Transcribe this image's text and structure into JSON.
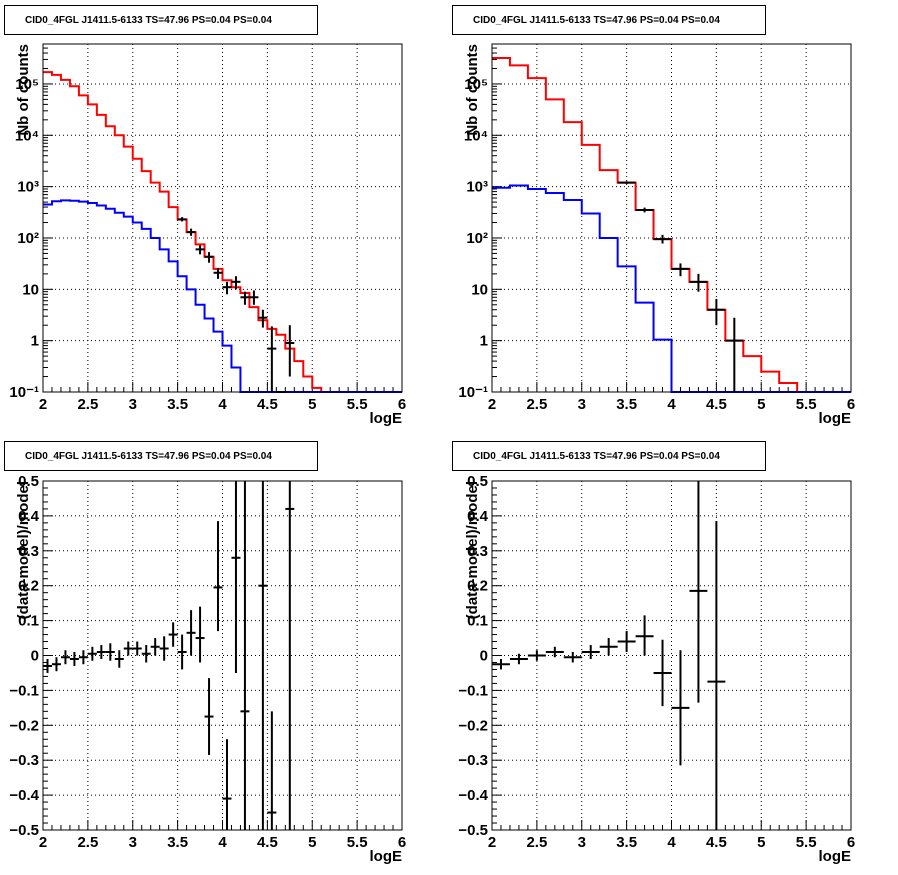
{
  "chart_data": [
    {
      "type": "histogram",
      "title": "CID0_4FGL J1411.5-6133 TS=47.96 PS=0.04 PS=0.04",
      "xlabel": "logE",
      "ylabel": "Nb of counts",
      "xlim": [
        2,
        6
      ],
      "ylim": [
        0.1,
        600000
      ],
      "yscale": "log",
      "grid": true,
      "xticks": [
        2,
        2.5,
        3,
        3.5,
        4,
        4.5,
        5,
        5.5,
        6
      ],
      "xticklabels": [
        "2",
        "2.5",
        "3",
        "3.5",
        "4",
        "4.5",
        "5",
        "5.5",
        "6"
      ],
      "yticks": [
        0.1,
        1,
        10,
        100,
        1000,
        10000,
        100000
      ],
      "bin_width": 0.1,
      "series": [
        {
          "kind": "step",
          "color": "#ff0000",
          "x": [
            2.05,
            2.15,
            2.25,
            2.35,
            2.45,
            2.55,
            2.65,
            2.75,
            2.85,
            2.95,
            3.05,
            3.15,
            3.25,
            3.35,
            3.45,
            3.55,
            3.65,
            3.75,
            3.85,
            3.95,
            4.05,
            4.15,
            4.25,
            4.35,
            4.45,
            4.55,
            4.65,
            4.75,
            4.85,
            4.95,
            5.05,
            5.15,
            5.25,
            5.35,
            5.45,
            5.55,
            5.65,
            5.75,
            5.85,
            5.95
          ],
          "values": [
            170000,
            150000,
            120000,
            90000,
            60000,
            40000,
            25000,
            15000,
            10000,
            6000,
            3500,
            2000,
            1200,
            800,
            400,
            230,
            130,
            75,
            43,
            25,
            15,
            11,
            8.5,
            4.5,
            2.5,
            1.7,
            1.3,
            0.7,
            0.4,
            0.2,
            0.12,
            0.1,
            0.1,
            0.1,
            0.1,
            0.1,
            0.1,
            0.1,
            0.1,
            0.1
          ]
        },
        {
          "kind": "step",
          "color": "#0000ff",
          "x": [
            2.05,
            2.15,
            2.25,
            2.35,
            2.45,
            2.55,
            2.65,
            2.75,
            2.85,
            2.95,
            3.05,
            3.15,
            3.25,
            3.35,
            3.45,
            3.55,
            3.65,
            3.75,
            3.85,
            3.95,
            4.05,
            4.15,
            4.25,
            4.35,
            4.45,
            4.55,
            4.65,
            4.75,
            4.85,
            4.95,
            5.05,
            5.15,
            5.25,
            5.35,
            5.45,
            5.55,
            5.65,
            5.75,
            5.85,
            5.95
          ],
          "values": [
            450,
            520,
            540,
            530,
            510,
            480,
            430,
            370,
            310,
            260,
            200,
            150,
            100,
            60,
            35,
            18,
            10,
            5,
            2.7,
            1.5,
            0.8,
            0.3,
            0.1,
            0.1,
            0.1,
            0.1,
            0.1,
            0.1,
            0.1,
            0.1,
            0.1,
            0.1,
            0.1,
            0.1,
            0.1,
            0.1,
            0.1,
            0.1,
            0.1,
            0.1
          ]
        },
        {
          "kind": "errorbars",
          "color": "#000000",
          "x": [
            3.55,
            3.65,
            3.75,
            3.85,
            3.95,
            4.05,
            4.15,
            4.25,
            4.35,
            4.45,
            4.55,
            4.65,
            4.75
          ],
          "values": [
            230,
            130,
            60,
            43,
            21,
            11,
            14,
            7,
            7,
            2.8,
            0.7,
            0.1,
            0.9
          ],
          "err_low": [
            210,
            110,
            48,
            33,
            16,
            8,
            10,
            5,
            5,
            1.8,
            0.1,
            0.1,
            0.2
          ],
          "err_high": [
            255,
            152,
            72,
            53,
            26,
            14,
            18,
            9,
            9.5,
            4,
            1.9,
            0.1,
            2
          ]
        }
      ]
    },
    {
      "type": "histogram",
      "title": "CID0_4FGL J1411.5-6133 TS=47.96 PS=0.04 PS=0.04",
      "xlabel": "logE",
      "ylabel": "Nb of counts",
      "xlim": [
        2,
        6
      ],
      "ylim": [
        0.1,
        600000
      ],
      "yscale": "log",
      "grid": true,
      "xticks": [
        2,
        2.5,
        3,
        3.5,
        4,
        4.5,
        5,
        5.5,
        6
      ],
      "xticklabels": [
        "2",
        "2.5",
        "3",
        "3.5",
        "4",
        "4.5",
        "5",
        "5.5",
        "6"
      ],
      "yticks": [
        0.1,
        1,
        10,
        100,
        1000,
        10000,
        100000
      ],
      "bin_width": 0.2,
      "series": [
        {
          "kind": "step",
          "color": "#ff0000",
          "x": [
            2.1,
            2.3,
            2.5,
            2.7,
            2.9,
            3.1,
            3.3,
            3.5,
            3.7,
            3.9,
            4.1,
            4.3,
            4.5,
            4.7,
            4.9,
            5.1,
            5.3,
            5.5,
            5.7,
            5.9
          ],
          "values": [
            320000,
            230000,
            130000,
            50000,
            18000,
            6500,
            2100,
            1200,
            350,
            95,
            25,
            14,
            4,
            1,
            0.5,
            0.25,
            0.15,
            0.1,
            0.1,
            0.1
          ]
        },
        {
          "kind": "step",
          "color": "#0000ff",
          "x": [
            2.1,
            2.3,
            2.5,
            2.7,
            2.9,
            3.1,
            3.3,
            3.5,
            3.7,
            3.9,
            4.1,
            4.3,
            4.5,
            4.7,
            4.9,
            5.1,
            5.3,
            5.5,
            5.7,
            5.9
          ],
          "values": [
            950,
            1050,
            900,
            750,
            550,
            300,
            100,
            28,
            5.5,
            1.05,
            0.1,
            0.1,
            0.1,
            0.1,
            0.1,
            0.1,
            0.1,
            0.1,
            0.1,
            0.1
          ]
        },
        {
          "kind": "errorbars",
          "color": "#000000",
          "x": [
            3.5,
            3.7,
            3.9,
            4.1,
            4.3,
            4.5,
            4.7
          ],
          "values": [
            1200,
            350,
            95,
            25,
            14,
            4,
            1
          ],
          "err_low": [
            1130,
            315,
            78,
            18,
            9,
            2,
            0.1
          ],
          "err_high": [
            1270,
            390,
            115,
            32,
            20,
            6.5,
            2.8
          ]
        }
      ]
    },
    {
      "type": "scatter",
      "title": "CID0_4FGL J1411.5-6133 TS=47.96 PS=0.04 PS=0.04",
      "xlabel": "logE",
      "ylabel": "(data-model)/model",
      "xlim": [
        2,
        6
      ],
      "ylim": [
        -0.5,
        0.5
      ],
      "yscale": "linear",
      "grid": true,
      "xticks": [
        2,
        2.5,
        3,
        3.5,
        4,
        4.5,
        5,
        5.5,
        6
      ],
      "xticklabels": [
        "2",
        "2.5",
        "3",
        "3.5",
        "4",
        "4.5",
        "5",
        "5.5",
        "6"
      ],
      "yticks": [
        -0.5,
        -0.4,
        -0.3,
        -0.2,
        -0.1,
        0,
        0.1,
        0.2,
        0.3,
        0.4,
        0.5
      ],
      "yticklabels": [
        "−0.5",
        "−0.4",
        "−0.3",
        "−0.2",
        "−0.1",
        "0",
        "0.1",
        "0.2",
        "0.3",
        "0.4",
        "0.5"
      ],
      "bin_width": 0.1,
      "series": [
        {
          "kind": "errorbars",
          "color": "#000000",
          "x": [
            2.05,
            2.15,
            2.25,
            2.35,
            2.45,
            2.55,
            2.65,
            2.75,
            2.85,
            2.95,
            3.05,
            3.15,
            3.25,
            3.35,
            3.45,
            3.55,
            3.65,
            3.75,
            3.85,
            3.95,
            4.05,
            4.15,
            4.25,
            4.35,
            4.45,
            4.55,
            4.65,
            4.75
          ],
          "values": [
            -0.03,
            -0.025,
            -0.005,
            -0.01,
            -0.005,
            0.005,
            0.01,
            0.01,
            -0.01,
            0.02,
            0.02,
            0.005,
            0.025,
            0.02,
            0.06,
            0.01,
            0.065,
            0.05,
            -0.175,
            0.195,
            -0.41,
            0.28,
            -0.16,
            null,
            0.2,
            -0.45,
            null,
            0.42
          ],
          "err_low": [
            -0.05,
            -0.045,
            -0.025,
            -0.03,
            -0.025,
            -0.015,
            -0.01,
            -0.015,
            -0.035,
            0,
            0,
            -0.02,
            0,
            -0.015,
            0.025,
            -0.04,
            0,
            -0.02,
            -0.285,
            0.07,
            -0.5,
            -0.05,
            -0.5,
            null,
            -0.5,
            -0.5,
            null,
            -0.5
          ],
          "err_high": [
            -0.01,
            -0.005,
            0.015,
            0.01,
            0.015,
            0.025,
            0.03,
            0.035,
            0.015,
            0.04,
            0.04,
            0.03,
            0.05,
            0.055,
            0.095,
            0.06,
            0.13,
            0.14,
            -0.065,
            0.385,
            -0.24,
            0.5,
            0.5,
            null,
            0.5,
            -0.16,
            null,
            0.5
          ]
        }
      ]
    },
    {
      "type": "scatter",
      "title": "CID0_4FGL J1411.5-6133 TS=47.96 PS=0.04 PS=0.04",
      "xlabel": "logE",
      "ylabel": "(data-model)/model",
      "xlim": [
        2,
        6
      ],
      "ylim": [
        -0.5,
        0.5
      ],
      "yscale": "linear",
      "grid": true,
      "xticks": [
        2,
        2.5,
        3,
        3.5,
        4,
        4.5,
        5,
        5.5,
        6
      ],
      "xticklabels": [
        "2",
        "2.5",
        "3",
        "3.5",
        "4",
        "4.5",
        "5",
        "5.5",
        "6"
      ],
      "yticks": [
        -0.5,
        -0.4,
        -0.3,
        -0.2,
        -0.1,
        0,
        0.1,
        0.2,
        0.3,
        0.4,
        0.5
      ],
      "yticklabels": [
        "−0.5",
        "−0.4",
        "−0.3",
        "−0.2",
        "−0.1",
        "0",
        "0.1",
        "0.2",
        "0.3",
        "0.4",
        "0.5"
      ],
      "bin_width": 0.2,
      "series": [
        {
          "kind": "errorbars",
          "color": "#000000",
          "x": [
            2.1,
            2.3,
            2.5,
            2.7,
            2.9,
            3.1,
            3.3,
            3.5,
            3.7,
            3.9,
            4.1,
            4.3,
            4.5
          ],
          "values": [
            -0.025,
            -0.01,
            0.0,
            0.01,
            -0.005,
            0.01,
            0.025,
            0.04,
            0.055,
            -0.05,
            -0.15,
            0.185,
            -0.075
          ],
          "err_low": [
            -0.04,
            -0.025,
            -0.015,
            -0.005,
            -0.02,
            -0.01,
            0.0,
            0.01,
            0.0,
            -0.145,
            -0.315,
            -0.135,
            -0.5
          ],
          "err_high": [
            -0.01,
            0.005,
            0.015,
            0.025,
            0.01,
            0.03,
            0.05,
            0.07,
            0.115,
            0.045,
            0.015,
            0.5,
            0.385
          ]
        }
      ]
    }
  ]
}
